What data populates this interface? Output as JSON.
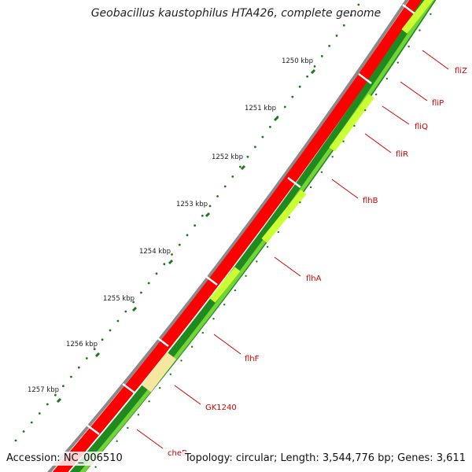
{
  "title": "Geobacillus kaustophilus HTA426, complete genome",
  "scale_labels": [
    "1250 kbp",
    "1251 kbp",
    "1252 kbp",
    "1253 kbp",
    "1254 kbp",
    "1255 kbp",
    "1256 kbp",
    "1257 kbp"
  ],
  "genes": [
    {
      "name": "fliZ"
    },
    {
      "name": "fliP"
    },
    {
      "name": "fliQ"
    },
    {
      "name": "fliR"
    },
    {
      "name": "flhB"
    },
    {
      "name": "flhA"
    },
    {
      "name": "flhF"
    },
    {
      "name": "GK1240"
    },
    {
      "name": "cheB"
    }
  ],
  "footer": {
    "accession": "Accession: NC_006510",
    "summary": "Topology: circular; Length: 3,544,776 bp; Genes: 3,611"
  },
  "colors": {
    "backbone": "#8a8a8a",
    "forward_cds": "#ff0000",
    "reverse_cds_dark": "#1f8a1f",
    "reverse_cds_light": "#ccff33",
    "hypothetical": "#f5e6a0",
    "label": "#cc0000",
    "tick": "#1a7a1a"
  }
}
